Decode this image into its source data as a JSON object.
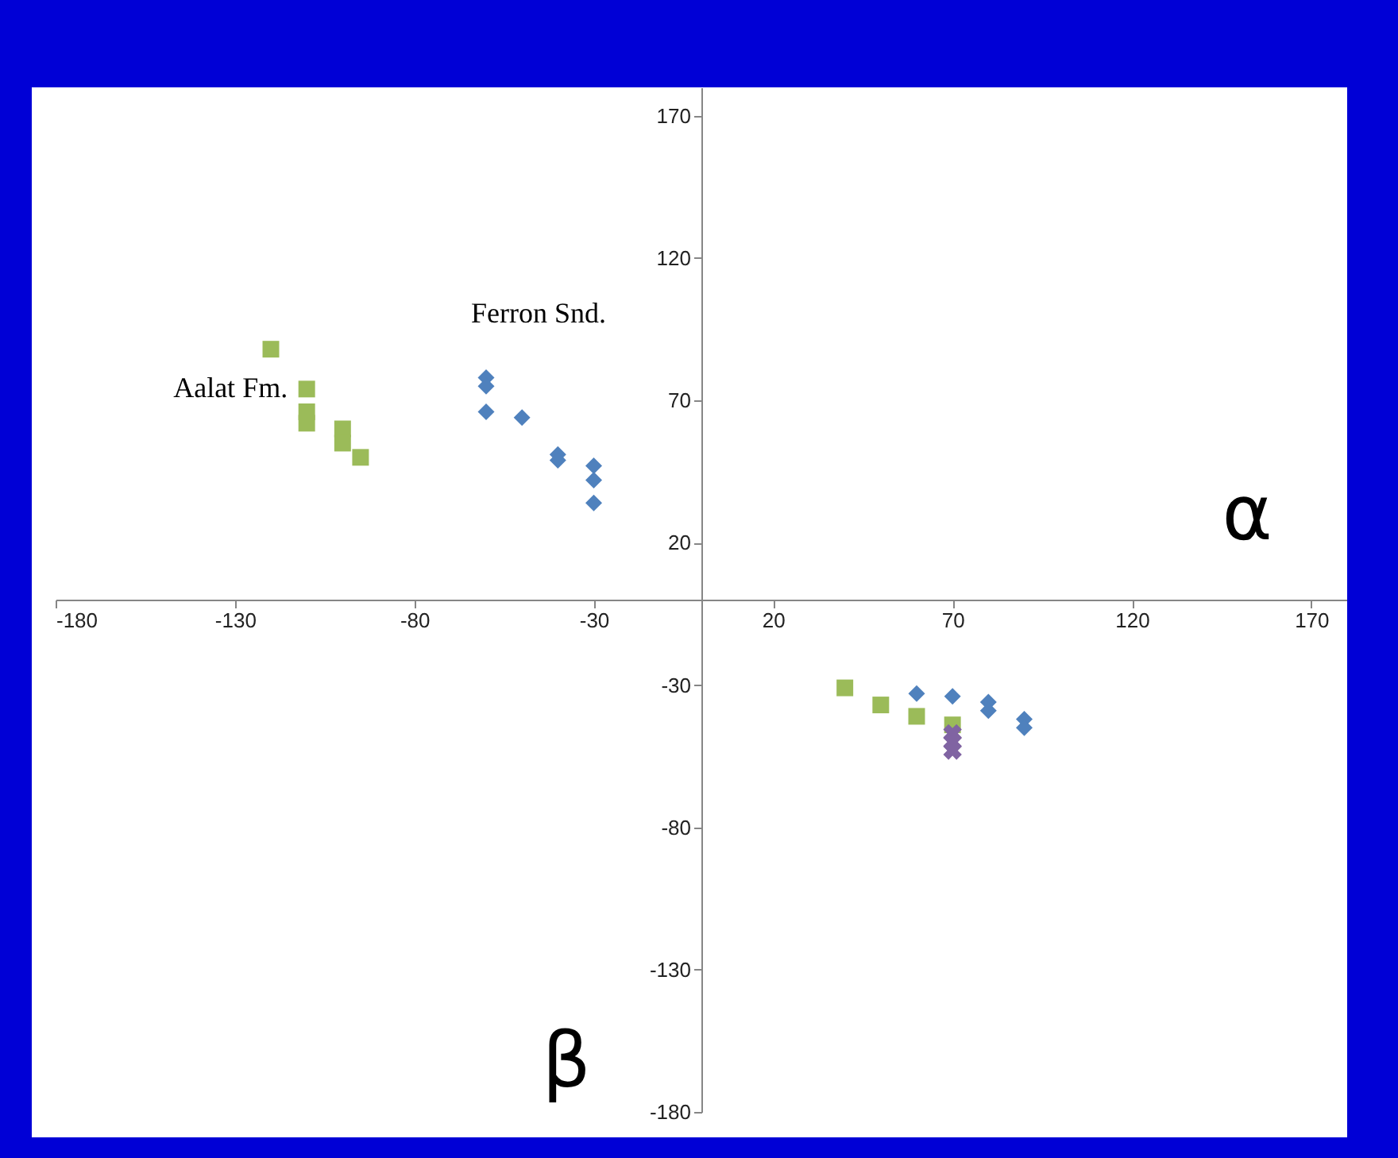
{
  "chart_data": {
    "type": "scatter",
    "xlabel": "α",
    "ylabel": "β",
    "xlim": [
      -180,
      180
    ],
    "ylim": [
      -180,
      180
    ],
    "xticks": [
      -180,
      -130,
      -80,
      -30,
      20,
      70,
      120,
      170
    ],
    "yticks": [
      -180,
      -130,
      -80,
      -30,
      20,
      70,
      120,
      170
    ],
    "grid": false,
    "series": [
      {
        "name": "Aalat Fm.",
        "color": "#9bbb59",
        "marker": "square",
        "x": [
          -110,
          -120,
          -110,
          -110,
          -100,
          -100,
          -95,
          40,
          50,
          60,
          70
        ],
        "values": [
          74,
          88,
          66,
          62,
          60,
          55,
          50,
          -31,
          -37,
          -41,
          -44
        ]
      },
      {
        "name": "Ferron Snd.",
        "color": "#4f81bd",
        "marker": "diamond",
        "x": [
          -60,
          -60,
          -60,
          -50,
          -40,
          -40,
          -30,
          -30,
          -30,
          60,
          70,
          80,
          80,
          90,
          90
        ],
        "values": [
          78,
          75,
          66,
          64,
          51,
          49,
          47,
          42,
          34,
          -33,
          -34,
          -36,
          -39,
          -42,
          -45
        ]
      },
      {
        "color": "#8064a2",
        "marker": "cross",
        "x": [
          70,
          70,
          70
        ],
        "values": [
          -47,
          -50,
          -53
        ]
      }
    ]
  }
}
